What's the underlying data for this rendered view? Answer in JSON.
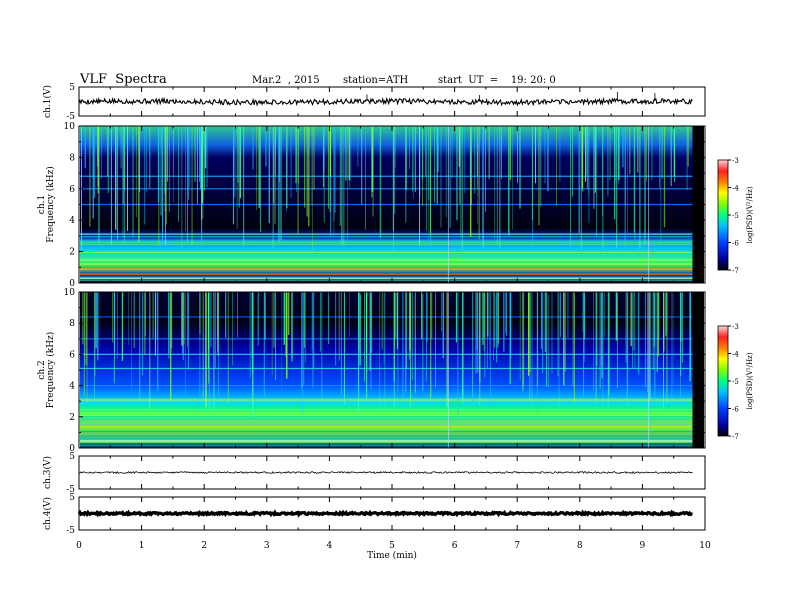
{
  "header": {
    "title": "VLF  Spectra",
    "date": "Mar.2  , 2015",
    "station": "station=ATH",
    "start": "start  UT  =    19: 20: 0"
  },
  "colors": {
    "background": "#ffffff",
    "axes": "#000000",
    "spectrogram_scale": [
      "#000000",
      "#0000b0",
      "#0000ff",
      "#0090ff",
      "#00f0e0",
      "#30ff30",
      "#ffff00",
      "#ff8000",
      "#ff0000",
      "#ffd0d0"
    ]
  },
  "chart_data": [
    {
      "type": "line",
      "panel": "ch1-waveform",
      "ylabel": "ch.1(V)",
      "yticks": [
        "5",
        "-5"
      ],
      "ylim": [
        -5,
        5
      ],
      "xlim": [
        0,
        10
      ],
      "trace_mean": 0,
      "trace_range_mean": [
        -0.4,
        0.4
      ],
      "trace_end_min": 9.8
    },
    {
      "type": "heatmap",
      "panel": "ch1-spectrogram",
      "ylabel_channel": "ch.1",
      "ylabel": "Frequency  (kHz)",
      "ylim": [
        0,
        10
      ],
      "yticks": [
        "10",
        "8",
        "6",
        "4",
        "2",
        "0"
      ],
      "xlim": [
        0,
        9.8
      ],
      "colorbar": {
        "label": "log(PSD)(V²/Hz)",
        "range": [
          -7,
          -3
        ],
        "ticks": [
          "-3",
          "-4",
          "-5",
          "-6",
          "-7"
        ]
      }
    },
    {
      "type": "heatmap",
      "panel": "ch2-spectrogram",
      "ylabel_channel": "ch.2",
      "ylabel": "Frequency  (kHz)",
      "ylim": [
        0,
        10
      ],
      "yticks": [
        "10",
        "8",
        "6",
        "4",
        "2",
        "0"
      ],
      "xlim": [
        0,
        9.8
      ],
      "colorbar": {
        "label": "log(PSD)(V²/Hz)",
        "range": [
          -7,
          -3
        ],
        "ticks": [
          "-3",
          "-4",
          "-5",
          "-6",
          "-7"
        ]
      }
    },
    {
      "type": "line",
      "panel": "ch3-waveform",
      "ylabel": "ch.3(V)",
      "yticks": [
        "5",
        "-5"
      ],
      "ylim": [
        -5,
        5
      ],
      "xlim": [
        0,
        10
      ],
      "trace_mean": 0,
      "trace_end_min": 9.8
    },
    {
      "type": "line",
      "panel": "ch4-waveform",
      "ylabel": "ch.4(V)",
      "yticks": [
        "5",
        "-5"
      ],
      "ylim": [
        -5,
        5
      ],
      "xlim": [
        0,
        10
      ],
      "trace_mean": 0,
      "trace_end_min": 9.8
    }
  ],
  "x_axis": {
    "label": "Time  (min)",
    "ticks": [
      "0",
      "1",
      "2",
      "3",
      "4",
      "5",
      "6",
      "7",
      "8",
      "9",
      "10"
    ]
  }
}
